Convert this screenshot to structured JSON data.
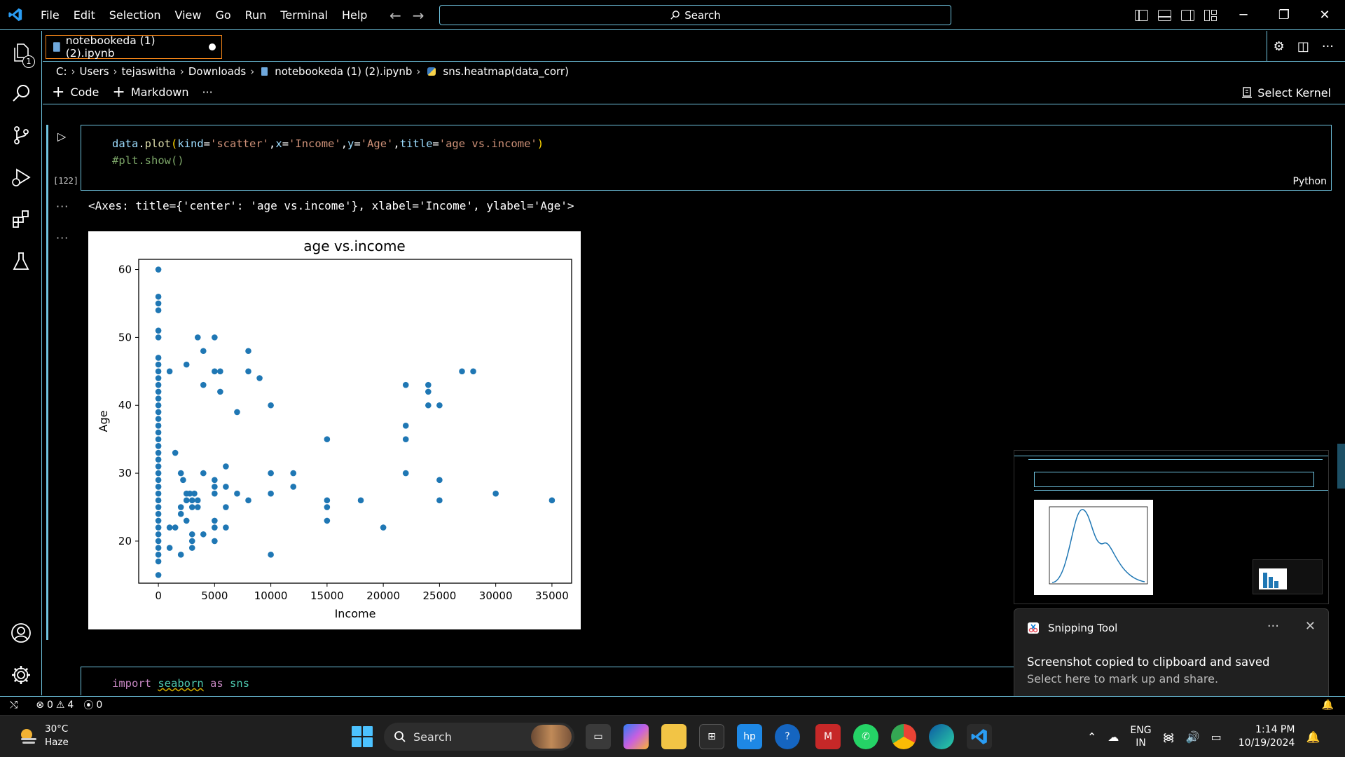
{
  "titlebar": {
    "menu": [
      "File",
      "Edit",
      "Selection",
      "View",
      "Go",
      "Run",
      "Terminal",
      "Help"
    ],
    "search_label": "Search"
  },
  "activitybar": {
    "explorer_badge": "1"
  },
  "tab": {
    "label": "notebookeda (1) (2).ipynb"
  },
  "breadcrumb": {
    "parts": [
      "C:",
      "Users",
      "tejaswitha",
      "Downloads",
      "notebookeda (1) (2).ipynb",
      "sns.heatmap(data_corr)"
    ]
  },
  "toolbar": {
    "code_label": "Code",
    "markdown_label": "Markdown",
    "more_label": "···",
    "kernel_label": "Select Kernel"
  },
  "cell1": {
    "exec_count": "[122]",
    "language": "Python",
    "line1": {
      "obj": "data",
      "dot": ".",
      "fn": "plot",
      "open": "(",
      "a1": "kind",
      "eq": "=",
      "v1": "'scatter'",
      "comma": ",",
      "a2": "x",
      "v2": "'Income'",
      "a3": "y",
      "v3": "'Age'",
      "a4": "title",
      "v4": "'age vs.income'",
      "close": ")"
    },
    "line2": "#plt.show()",
    "output_text": "<Axes: title={'center': 'age vs.income'}, xlabel='Income', ylabel='Age'>",
    "output_dots": "···"
  },
  "chart_data": {
    "type": "scatter",
    "title": "age vs.income",
    "xlabel": "Income",
    "ylabel": "Age",
    "xlim": [
      -1750,
      36750
    ],
    "ylim": [
      13.8,
      61.5
    ],
    "xticks": [
      0,
      5000,
      10000,
      15000,
      20000,
      25000,
      30000,
      35000
    ],
    "yticks": [
      20,
      30,
      40,
      50,
      60
    ],
    "color": "#1f77b4",
    "grid": false,
    "points": [
      [
        0,
        15
      ],
      [
        0,
        17
      ],
      [
        0,
        18
      ],
      [
        0,
        19
      ],
      [
        0,
        20
      ],
      [
        0,
        21
      ],
      [
        0,
        22
      ],
      [
        0,
        23
      ],
      [
        0,
        24
      ],
      [
        0,
        25
      ],
      [
        0,
        26
      ],
      [
        0,
        27
      ],
      [
        0,
        28
      ],
      [
        0,
        29
      ],
      [
        0,
        30
      ],
      [
        0,
        31
      ],
      [
        0,
        32
      ],
      [
        0,
        33
      ],
      [
        0,
        34
      ],
      [
        0,
        35
      ],
      [
        0,
        36
      ],
      [
        0,
        37
      ],
      [
        0,
        38
      ],
      [
        0,
        39
      ],
      [
        0,
        40
      ],
      [
        0,
        41
      ],
      [
        0,
        42
      ],
      [
        0,
        43
      ],
      [
        0,
        44
      ],
      [
        0,
        45
      ],
      [
        0,
        46
      ],
      [
        0,
        47
      ],
      [
        0,
        50
      ],
      [
        0,
        51
      ],
      [
        0,
        54
      ],
      [
        0,
        55
      ],
      [
        0,
        56
      ],
      [
        0,
        60
      ],
      [
        1000,
        19
      ],
      [
        1000,
        22
      ],
      [
        1000,
        45
      ],
      [
        1500,
        33
      ],
      [
        1500,
        22
      ],
      [
        2000,
        30
      ],
      [
        2000,
        25
      ],
      [
        2000,
        24
      ],
      [
        2000,
        18
      ],
      [
        2200,
        29
      ],
      [
        2500,
        27
      ],
      [
        2500,
        26
      ],
      [
        2500,
        23
      ],
      [
        2500,
        46
      ],
      [
        2800,
        27
      ],
      [
        3000,
        26
      ],
      [
        3000,
        25
      ],
      [
        3000,
        21
      ],
      [
        3000,
        20
      ],
      [
        3000,
        19
      ],
      [
        3200,
        27
      ],
      [
        3500,
        25
      ],
      [
        3500,
        26
      ],
      [
        3500,
        50
      ],
      [
        4000,
        21
      ],
      [
        4000,
        30
      ],
      [
        4000,
        48
      ],
      [
        4000,
        43
      ],
      [
        5000,
        50
      ],
      [
        5000,
        45
      ],
      [
        5000,
        29
      ],
      [
        5000,
        28
      ],
      [
        5000,
        27
      ],
      [
        5000,
        23
      ],
      [
        5000,
        22
      ],
      [
        5000,
        20
      ],
      [
        5500,
        42
      ],
      [
        5500,
        45
      ],
      [
        6000,
        31
      ],
      [
        6000,
        28
      ],
      [
        6000,
        25
      ],
      [
        6000,
        22
      ],
      [
        7000,
        39
      ],
      [
        7000,
        27
      ],
      [
        8000,
        48
      ],
      [
        8000,
        45
      ],
      [
        8000,
        26
      ],
      [
        9000,
        44
      ],
      [
        10000,
        40
      ],
      [
        10000,
        30
      ],
      [
        10000,
        27
      ],
      [
        10000,
        18
      ],
      [
        12000,
        30
      ],
      [
        12000,
        28
      ],
      [
        15000,
        35
      ],
      [
        15000,
        26
      ],
      [
        15000,
        25
      ],
      [
        15000,
        23
      ],
      [
        18000,
        26
      ],
      [
        20000,
        22
      ],
      [
        22000,
        43
      ],
      [
        22000,
        37
      ],
      [
        22000,
        35
      ],
      [
        22000,
        30
      ],
      [
        24000,
        43
      ],
      [
        24000,
        42
      ],
      [
        24000,
        40
      ],
      [
        25000,
        40
      ],
      [
        25000,
        29
      ],
      [
        25000,
        26
      ],
      [
        27000,
        45
      ],
      [
        28000,
        45
      ],
      [
        30000,
        27
      ],
      [
        35000,
        26
      ]
    ]
  },
  "cell2": {
    "kw_import": "import",
    "module": "seaborn",
    "kw_as": "as",
    "alias": "sns"
  },
  "toast": {
    "app": "Snipping Tool",
    "title": "Screenshot copied to clipboard and saved",
    "subtitle": "Select here to mark up and share.",
    "more": "···",
    "close": "✕"
  },
  "statusbar": {
    "errors": "0",
    "warnings": "4",
    "ports": "0"
  },
  "taskbar": {
    "temp": "30°C",
    "weather": "Haze",
    "search_label": "Search",
    "lang_top": "ENG",
    "lang_bottom": "IN",
    "time": "1:14 PM",
    "date": "10/19/2024"
  }
}
